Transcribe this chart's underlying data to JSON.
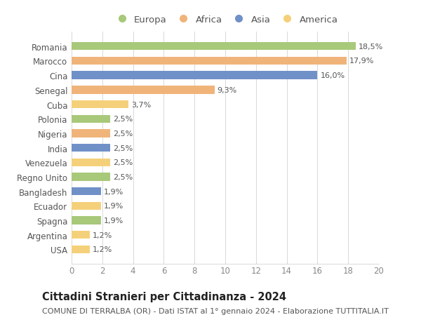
{
  "categories": [
    "Romania",
    "Marocco",
    "Cina",
    "Senegal",
    "Cuba",
    "Polonia",
    "Nigeria",
    "India",
    "Venezuela",
    "Regno Unito",
    "Bangladesh",
    "Ecuador",
    "Spagna",
    "Argentina",
    "USA"
  ],
  "values": [
    18.5,
    17.9,
    16.0,
    9.3,
    3.7,
    2.5,
    2.5,
    2.5,
    2.5,
    2.5,
    1.9,
    1.9,
    1.9,
    1.2,
    1.2
  ],
  "labels": [
    "18,5%",
    "17,9%",
    "16,0%",
    "9,3%",
    "3,7%",
    "2,5%",
    "2,5%",
    "2,5%",
    "2,5%",
    "2,5%",
    "1,9%",
    "1,9%",
    "1,9%",
    "1,2%",
    "1,2%"
  ],
  "continents": [
    "Europa",
    "Africa",
    "Asia",
    "Africa",
    "America",
    "Europa",
    "Africa",
    "Asia",
    "America",
    "Europa",
    "Asia",
    "America",
    "Europa",
    "America",
    "America"
  ],
  "colors": {
    "Europa": "#a8c87a",
    "Africa": "#f0b47a",
    "Asia": "#7090c8",
    "America": "#f5d07a"
  },
  "legend_order": [
    "Europa",
    "Africa",
    "Asia",
    "America"
  ],
  "title": "Cittadini Stranieri per Cittadinanza - 2024",
  "subtitle": "COMUNE DI TERRALBA (OR) - Dati ISTAT al 1° gennaio 2024 - Elaborazione TUTTITALIA.IT",
  "xlim": [
    0,
    20
  ],
  "xticks": [
    0,
    2,
    4,
    6,
    8,
    10,
    12,
    14,
    16,
    18,
    20
  ],
  "background_color": "#ffffff",
  "grid_color": "#d8d8d8",
  "bar_height": 0.55,
  "title_fontsize": 10.5,
  "subtitle_fontsize": 8,
  "tick_fontsize": 8.5,
  "label_fontsize": 8,
  "legend_fontsize": 9.5
}
